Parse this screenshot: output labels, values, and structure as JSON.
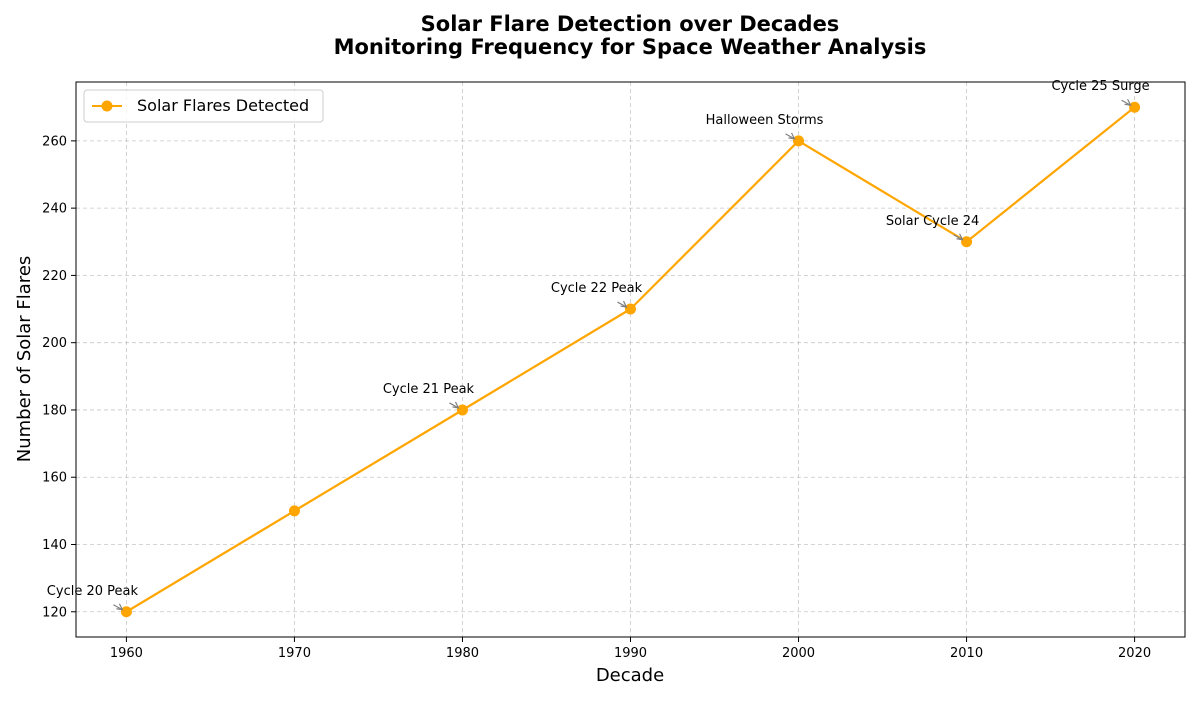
{
  "chart_data": {
    "type": "line",
    "title": "Solar Flare Detection over Decades",
    "subtitle": "Monitoring Frequency for Space Weather Analysis",
    "xlabel": "Decade",
    "ylabel": "Number of Solar Flares",
    "x": [
      1960,
      1970,
      1980,
      1990,
      2000,
      2010,
      2020
    ],
    "series": [
      {
        "name": "Solar Flares Detected",
        "values": [
          120,
          150,
          180,
          210,
          260,
          230,
          270
        ],
        "color": "#FFA500",
        "marker": "circle"
      }
    ],
    "x_ticks": [
      "1960",
      "1970",
      "1980",
      "1990",
      "2000",
      "2010",
      "2020"
    ],
    "y_ticks": [
      "120",
      "140",
      "160",
      "180",
      "200",
      "220",
      "240",
      "260"
    ],
    "xlim": [
      1957,
      2023
    ],
    "ylim": [
      112.5,
      277.5
    ],
    "grid": true,
    "legend_position": "upper-left",
    "annotations": [
      {
        "x": 1960,
        "y": 120,
        "text": "Cycle 20 Peak"
      },
      {
        "x": 1980,
        "y": 180,
        "text": "Cycle 21 Peak"
      },
      {
        "x": 1990,
        "y": 210,
        "text": "Cycle 22 Peak"
      },
      {
        "x": 2000,
        "y": 260,
        "text": "Halloween Storms"
      },
      {
        "x": 2010,
        "y": 230,
        "text": "Solar Cycle 24"
      },
      {
        "x": 2020,
        "y": 270,
        "text": "Cycle 25 Surge"
      }
    ]
  }
}
